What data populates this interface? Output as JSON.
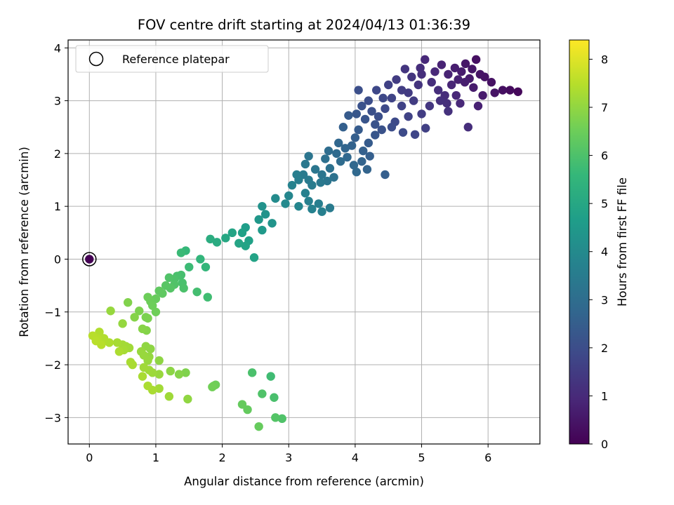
{
  "chart_data": {
    "type": "scatter",
    "title": "FOV centre drift starting at 2024/04/13 01:36:39",
    "xlabel": "Angular distance from reference (arcmin)",
    "ylabel": "Rotation from reference (arcmin)",
    "xlim": [
      -0.32,
      6.78
    ],
    "ylim": [
      -3.5,
      4.15
    ],
    "xticks": [
      "0",
      "1",
      "2",
      "3",
      "4",
      "5",
      "6"
    ],
    "yticks": [
      "−3",
      "−2",
      "−1",
      "0",
      "1",
      "2",
      "3",
      "4"
    ],
    "grid": true,
    "legend": {
      "placement": "top-left",
      "label": "Reference platepar"
    },
    "colorbar": {
      "label": "Hours from first FF file",
      "range": [
        0,
        8.4
      ],
      "ticks": [
        "0",
        "1",
        "2",
        "3",
        "4",
        "5",
        "6",
        "7",
        "8"
      ],
      "colormap": "viridis",
      "color_stops": [
        "#440154",
        "#482878",
        "#3e4989",
        "#31688e",
        "#26828e",
        "#1f9e89",
        "#35b779",
        "#6ece58",
        "#b5de2b",
        "#fde725"
      ]
    },
    "reference_point": {
      "x": 0,
      "y": 0,
      "hours": 0
    },
    "series": [
      {
        "points": [
          [
            6.45,
            3.17
          ],
          [
            6.33,
            3.2
          ],
          [
            6.22,
            3.2
          ],
          [
            5.95,
            3.45
          ],
          [
            5.88,
            3.5
          ],
          [
            5.82,
            3.78
          ],
          [
            5.76,
            3.6
          ],
          [
            5.72,
            3.42
          ],
          [
            5.66,
            3.7
          ],
          [
            5.6,
            3.55
          ],
          [
            5.55,
            3.4
          ],
          [
            5.5,
            3.62
          ],
          [
            5.45,
            3.3
          ],
          [
            5.4,
            3.5
          ],
          [
            5.35,
            3.1
          ],
          [
            5.3,
            3.68
          ],
          [
            5.25,
            3.2
          ],
          [
            5.2,
            3.55
          ],
          [
            5.15,
            3.35
          ],
          [
            5.05,
            3.78
          ],
          [
            5.0,
            3.5
          ],
          [
            4.95,
            3.3
          ],
          [
            4.85,
            3.45
          ],
          [
            4.8,
            3.15
          ],
          [
            4.75,
            3.6
          ],
          [
            4.7,
            3.2
          ],
          [
            4.62,
            3.4
          ],
          [
            4.55,
            3.05
          ],
          [
            4.5,
            3.3
          ],
          [
            5.92,
            3.1
          ],
          [
            6.05,
            3.35
          ],
          [
            6.1,
            3.15
          ],
          [
            5.85,
            2.9
          ],
          [
            5.7,
            2.5
          ],
          [
            5.58,
            2.95
          ],
          [
            5.4,
            2.8
          ],
          [
            5.28,
            3.0
          ],
          [
            5.12,
            2.9
          ],
          [
            5.0,
            2.75
          ],
          [
            4.88,
            3.0
          ],
          [
            4.7,
            2.9
          ],
          [
            4.42,
            3.05
          ],
          [
            4.32,
            3.2
          ],
          [
            4.2,
            3.0
          ],
          [
            4.05,
            3.2
          ],
          [
            4.98,
            3.62
          ],
          [
            5.65,
            3.35
          ],
          [
            5.78,
            3.25
          ],
          [
            5.52,
            3.1
          ],
          [
            5.38,
            2.95
          ],
          [
            4.45,
            2.85
          ],
          [
            4.35,
            2.7
          ],
          [
            4.25,
            2.8
          ],
          [
            4.15,
            2.65
          ],
          [
            4.1,
            2.9
          ],
          [
            4.6,
            2.6
          ],
          [
            4.72,
            2.4
          ],
          [
            4.9,
            2.36
          ],
          [
            5.06,
            2.48
          ],
          [
            4.8,
            2.7
          ],
          [
            4.55,
            2.5
          ],
          [
            4.4,
            2.45
          ],
          [
            4.3,
            2.55
          ],
          [
            4.02,
            2.75
          ],
          [
            3.9,
            2.72
          ],
          [
            3.82,
            2.5
          ],
          [
            4.05,
            2.45
          ],
          [
            4.0,
            2.3
          ],
          [
            3.95,
            2.15
          ],
          [
            4.2,
            2.2
          ],
          [
            4.3,
            2.35
          ],
          [
            4.12,
            2.05
          ],
          [
            3.85,
            2.1
          ],
          [
            3.75,
            2.2
          ],
          [
            4.22,
            1.95
          ],
          [
            4.1,
            1.85
          ],
          [
            4.18,
            1.7
          ],
          [
            3.98,
            1.78
          ],
          [
            3.88,
            1.93
          ],
          [
            3.72,
            2.0
          ],
          [
            3.6,
            2.05
          ],
          [
            3.55,
            1.9
          ],
          [
            3.62,
            1.72
          ],
          [
            3.5,
            1.6
          ],
          [
            3.4,
            1.7
          ],
          [
            3.3,
            1.5
          ],
          [
            4.45,
            1.6
          ],
          [
            4.02,
            1.65
          ],
          [
            3.78,
            1.85
          ],
          [
            3.68,
            1.55
          ],
          [
            3.58,
            1.48
          ],
          [
            3.48,
            1.45
          ],
          [
            3.3,
            1.95
          ],
          [
            3.25,
            1.8
          ],
          [
            3.22,
            1.6
          ],
          [
            3.35,
            1.4
          ],
          [
            3.15,
            1.5
          ],
          [
            3.12,
            1.6
          ],
          [
            3.05,
            1.4
          ],
          [
            3.0,
            1.2
          ],
          [
            3.25,
            1.25
          ],
          [
            3.3,
            1.1
          ],
          [
            3.35,
            0.95
          ],
          [
            3.5,
            0.9
          ],
          [
            3.45,
            1.05
          ],
          [
            3.62,
            0.97
          ],
          [
            3.15,
            1.0
          ],
          [
            2.95,
            1.05
          ],
          [
            2.8,
            1.15
          ],
          [
            2.6,
            1.0
          ],
          [
            2.55,
            0.75
          ],
          [
            2.65,
            0.85
          ],
          [
            2.75,
            0.68
          ],
          [
            2.35,
            0.6
          ],
          [
            2.3,
            0.5
          ],
          [
            2.4,
            0.35
          ],
          [
            2.6,
            0.55
          ],
          [
            2.48,
            0.03
          ],
          [
            2.15,
            0.5
          ],
          [
            2.05,
            0.4
          ],
          [
            1.92,
            0.32
          ],
          [
            1.82,
            0.38
          ],
          [
            2.25,
            0.3
          ],
          [
            2.35,
            0.25
          ],
          [
            1.45,
            0.16
          ],
          [
            1.38,
            0.12
          ],
          [
            1.67,
            0.0
          ],
          [
            1.75,
            -0.15
          ],
          [
            1.5,
            -0.15
          ],
          [
            1.38,
            -0.3
          ],
          [
            1.28,
            -0.38
          ],
          [
            1.2,
            -0.35
          ],
          [
            1.15,
            -0.5
          ],
          [
            1.05,
            -0.6
          ],
          [
            1.0,
            -0.75
          ],
          [
            0.92,
            -0.8
          ],
          [
            0.88,
            -0.72
          ],
          [
            1.1,
            -0.65
          ],
          [
            1.22,
            -0.55
          ],
          [
            1.28,
            -0.48
          ],
          [
            1.4,
            -0.45
          ],
          [
            1.42,
            -0.55
          ],
          [
            1.32,
            -0.32
          ],
          [
            1.62,
            -0.62
          ],
          [
            1.78,
            -0.72
          ],
          [
            1.0,
            -1.0
          ],
          [
            0.95,
            -0.88
          ],
          [
            0.85,
            -1.1
          ],
          [
            0.75,
            -0.98
          ],
          [
            0.5,
            -1.22
          ],
          [
            0.58,
            -0.82
          ],
          [
            0.32,
            -0.98
          ],
          [
            0.05,
            -1.45
          ],
          [
            0.12,
            -1.5
          ],
          [
            0.2,
            -1.5
          ],
          [
            0.3,
            -1.58
          ],
          [
            0.42,
            -1.58
          ],
          [
            0.5,
            -1.62
          ],
          [
            0.55,
            -1.65
          ],
          [
            0.6,
            -1.68
          ],
          [
            0.15,
            -1.38
          ],
          [
            0.22,
            -1.5
          ],
          [
            0.1,
            -1.55
          ],
          [
            0.18,
            -1.62
          ],
          [
            0.45,
            -1.75
          ],
          [
            0.52,
            -1.72
          ],
          [
            0.68,
            -1.1
          ],
          [
            0.8,
            -1.32
          ],
          [
            0.86,
            -1.35
          ],
          [
            0.88,
            -1.12
          ],
          [
            0.78,
            -1.75
          ],
          [
            0.82,
            -1.82
          ],
          [
            0.9,
            -1.85
          ],
          [
            0.85,
            -1.65
          ],
          [
            0.92,
            -1.7
          ],
          [
            0.88,
            -1.92
          ],
          [
            0.62,
            -1.95
          ],
          [
            0.65,
            -2.0
          ],
          [
            0.82,
            -2.05
          ],
          [
            0.9,
            -2.1
          ],
          [
            0.95,
            -2.15
          ],
          [
            1.05,
            -2.18
          ],
          [
            1.05,
            -1.92
          ],
          [
            0.8,
            -2.22
          ],
          [
            1.35,
            -2.18
          ],
          [
            1.45,
            -2.15
          ],
          [
            1.22,
            -2.12
          ],
          [
            0.88,
            -2.4
          ],
          [
            0.95,
            -2.48
          ],
          [
            1.05,
            -2.45
          ],
          [
            1.2,
            -2.6
          ],
          [
            1.48,
            -2.65
          ],
          [
            1.85,
            -2.42
          ],
          [
            1.9,
            -2.38
          ],
          [
            1.87,
            -2.4
          ],
          [
            2.45,
            -2.15
          ],
          [
            2.73,
            -2.22
          ],
          [
            2.3,
            -2.75
          ],
          [
            2.38,
            -2.85
          ],
          [
            2.6,
            -2.55
          ],
          [
            2.78,
            -2.62
          ],
          [
            2.55,
            -3.17
          ],
          [
            2.8,
            -3.0
          ],
          [
            2.9,
            -3.02
          ]
        ]
      }
    ]
  }
}
